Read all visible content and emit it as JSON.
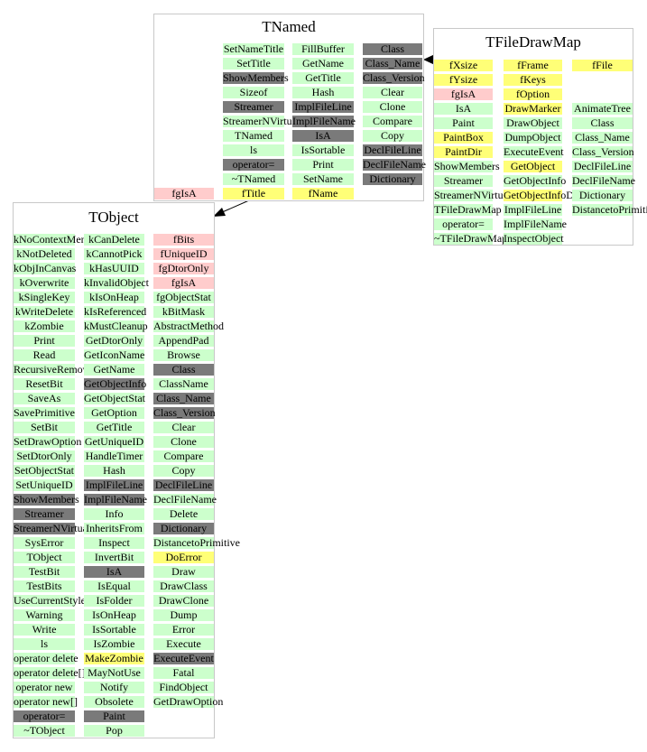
{
  "colors": {
    "public": "#ccffcc",
    "inherited": "#7a7a7a",
    "data": "#ffff77",
    "private": "#ffcccc",
    "border": "#c8c8c8",
    "edge": "#000000"
  },
  "tnamed": {
    "title": "TNamed",
    "columns": [
      [
        {
          "t": "SetNameTitle",
          "c": "public"
        },
        {
          "t": "SetTitle",
          "c": "public"
        },
        {
          "t": "ShowMembers",
          "c": "inherited"
        },
        {
          "t": "Sizeof",
          "c": "public"
        },
        {
          "t": "Streamer",
          "c": "inherited"
        },
        {
          "t": "StreamerNVirtual",
          "c": "public"
        },
        {
          "t": "TNamed",
          "c": "public"
        },
        {
          "t": "ls",
          "c": "public"
        },
        {
          "t": "operator=",
          "c": "inherited"
        },
        {
          "t": "~TNamed",
          "c": "public"
        },
        {
          "t": "fTitle",
          "c": "data"
        }
      ],
      [
        {
          "t": "FillBuffer",
          "c": "public"
        },
        {
          "t": "GetName",
          "c": "public"
        },
        {
          "t": "GetTitle",
          "c": "public"
        },
        {
          "t": "Hash",
          "c": "public"
        },
        {
          "t": "ImplFileLine",
          "c": "inherited"
        },
        {
          "t": "ImplFileName",
          "c": "inherited"
        },
        {
          "t": "IsA",
          "c": "inherited"
        },
        {
          "t": "IsSortable",
          "c": "public"
        },
        {
          "t": "Print",
          "c": "public"
        },
        {
          "t": "SetName",
          "c": "public"
        },
        {
          "t": "fName",
          "c": "data"
        }
      ],
      [
        {
          "t": "Class",
          "c": "inherited"
        },
        {
          "t": "Class_Name",
          "c": "inherited"
        },
        {
          "t": "Class_Version",
          "c": "inherited"
        },
        {
          "t": "Clear",
          "c": "public"
        },
        {
          "t": "Clone",
          "c": "public"
        },
        {
          "t": "Compare",
          "c": "public"
        },
        {
          "t": "Copy",
          "c": "public"
        },
        {
          "t": "DeclFileLine",
          "c": "inherited"
        },
        {
          "t": "DeclFileName",
          "c": "inherited"
        },
        {
          "t": "Dictionary",
          "c": "inherited"
        }
      ]
    ],
    "fgisa": {
      "t": "fgIsA",
      "c": "private"
    }
  },
  "tfiledrawmap": {
    "title": "TFileDrawMap",
    "columns": [
      [
        {
          "t": "fXsize",
          "c": "data"
        },
        {
          "t": "fYsize",
          "c": "data"
        },
        {
          "t": "fgIsA",
          "c": "private"
        },
        {
          "t": "IsA",
          "c": "public"
        },
        {
          "t": "Paint",
          "c": "public"
        },
        {
          "t": "PaintBox",
          "c": "data"
        },
        {
          "t": "PaintDir",
          "c": "data"
        },
        {
          "t": "ShowMembers",
          "c": "public"
        },
        {
          "t": "Streamer",
          "c": "public"
        },
        {
          "t": "StreamerNVirtual",
          "c": "public"
        },
        {
          "t": "TFileDrawMap",
          "c": "public"
        },
        {
          "t": "operator=",
          "c": "public"
        },
        {
          "t": "~TFileDrawMap",
          "c": "public"
        }
      ],
      [
        {
          "t": "fFrame",
          "c": "data"
        },
        {
          "t": "fKeys",
          "c": "data"
        },
        {
          "t": "fOption",
          "c": "data"
        },
        {
          "t": "DrawMarker",
          "c": "data"
        },
        {
          "t": "DrawObject",
          "c": "public"
        },
        {
          "t": "DumpObject",
          "c": "public"
        },
        {
          "t": "ExecuteEvent",
          "c": "public"
        },
        {
          "t": "GetObject",
          "c": "data"
        },
        {
          "t": "GetObjectInfo",
          "c": "public"
        },
        {
          "t": "GetObjectInfoDir",
          "c": "data"
        },
        {
          "t": "ImplFileLine",
          "c": "public"
        },
        {
          "t": "ImplFileName",
          "c": "public"
        },
        {
          "t": "InspectObject",
          "c": "public"
        }
      ],
      [
        {
          "t": "fFile",
          "c": "data"
        },
        {
          "t": "",
          "c": "none"
        },
        {
          "t": "",
          "c": "none"
        },
        {
          "t": "AnimateTree",
          "c": "public"
        },
        {
          "t": "Class",
          "c": "public"
        },
        {
          "t": "Class_Name",
          "c": "public"
        },
        {
          "t": "Class_Version",
          "c": "public"
        },
        {
          "t": "DeclFileLine",
          "c": "public"
        },
        {
          "t": "DeclFileName",
          "c": "public"
        },
        {
          "t": "Dictionary",
          "c": "public"
        },
        {
          "t": "DistancetoPrimitive",
          "c": "public"
        }
      ]
    ]
  },
  "tobject": {
    "title": "TObject",
    "columns": [
      [
        {
          "t": "kNoContextMenu",
          "c": "public"
        },
        {
          "t": "kNotDeleted",
          "c": "public"
        },
        {
          "t": "kObjInCanvas",
          "c": "public"
        },
        {
          "t": "kOverwrite",
          "c": "public"
        },
        {
          "t": "kSingleKey",
          "c": "public"
        },
        {
          "t": "kWriteDelete",
          "c": "public"
        },
        {
          "t": "kZombie",
          "c": "public"
        },
        {
          "t": "Print",
          "c": "public"
        },
        {
          "t": "Read",
          "c": "public"
        },
        {
          "t": "RecursiveRemove",
          "c": "public"
        },
        {
          "t": "ResetBit",
          "c": "public"
        },
        {
          "t": "SaveAs",
          "c": "public"
        },
        {
          "t": "SavePrimitive",
          "c": "public"
        },
        {
          "t": "SetBit",
          "c": "public"
        },
        {
          "t": "SetDrawOption",
          "c": "public"
        },
        {
          "t": "SetDtorOnly",
          "c": "public"
        },
        {
          "t": "SetObjectStat",
          "c": "public"
        },
        {
          "t": "SetUniqueID",
          "c": "public"
        },
        {
          "t": "ShowMembers",
          "c": "inherited"
        },
        {
          "t": "Streamer",
          "c": "inherited"
        },
        {
          "t": "StreamerNVirtual",
          "c": "inherited"
        },
        {
          "t": "SysError",
          "c": "public"
        },
        {
          "t": "TObject",
          "c": "public"
        },
        {
          "t": "TestBit",
          "c": "public"
        },
        {
          "t": "TestBits",
          "c": "public"
        },
        {
          "t": "UseCurrentStyle",
          "c": "public"
        },
        {
          "t": "Warning",
          "c": "public"
        },
        {
          "t": "Write",
          "c": "public"
        },
        {
          "t": "ls",
          "c": "public"
        },
        {
          "t": "operator delete",
          "c": "public"
        },
        {
          "t": "operator delete[]",
          "c": "public"
        },
        {
          "t": "operator new",
          "c": "public"
        },
        {
          "t": "operator new[]",
          "c": "public"
        },
        {
          "t": "operator=",
          "c": "inherited"
        },
        {
          "t": "~TObject",
          "c": "public"
        }
      ],
      [
        {
          "t": "kCanDelete",
          "c": "public"
        },
        {
          "t": "kCannotPick",
          "c": "public"
        },
        {
          "t": "kHasUUID",
          "c": "public"
        },
        {
          "t": "kInvalidObject",
          "c": "public"
        },
        {
          "t": "kIsOnHeap",
          "c": "public"
        },
        {
          "t": "kIsReferenced",
          "c": "public"
        },
        {
          "t": "kMustCleanup",
          "c": "public"
        },
        {
          "t": "GetDtorOnly",
          "c": "public"
        },
        {
          "t": "GetIconName",
          "c": "public"
        },
        {
          "t": "GetName",
          "c": "public"
        },
        {
          "t": "GetObjectInfo",
          "c": "inherited"
        },
        {
          "t": "GetObjectStat",
          "c": "public"
        },
        {
          "t": "GetOption",
          "c": "public"
        },
        {
          "t": "GetTitle",
          "c": "public"
        },
        {
          "t": "GetUniqueID",
          "c": "public"
        },
        {
          "t": "HandleTimer",
          "c": "public"
        },
        {
          "t": "Hash",
          "c": "public"
        },
        {
          "t": "ImplFileLine",
          "c": "inherited"
        },
        {
          "t": "ImplFileName",
          "c": "inherited"
        },
        {
          "t": "Info",
          "c": "public"
        },
        {
          "t": "InheritsFrom",
          "c": "public"
        },
        {
          "t": "Inspect",
          "c": "public"
        },
        {
          "t": "InvertBit",
          "c": "public"
        },
        {
          "t": "IsA",
          "c": "inherited"
        },
        {
          "t": "IsEqual",
          "c": "public"
        },
        {
          "t": "IsFolder",
          "c": "public"
        },
        {
          "t": "IsOnHeap",
          "c": "public"
        },
        {
          "t": "IsSortable",
          "c": "public"
        },
        {
          "t": "IsZombie",
          "c": "public"
        },
        {
          "t": "MakeZombie",
          "c": "data"
        },
        {
          "t": "MayNotUse",
          "c": "public"
        },
        {
          "t": "Notify",
          "c": "public"
        },
        {
          "t": "Obsolete",
          "c": "public"
        },
        {
          "t": "Paint",
          "c": "inherited"
        },
        {
          "t": "Pop",
          "c": "public"
        }
      ],
      [
        {
          "t": "fBits",
          "c": "private"
        },
        {
          "t": "fUniqueID",
          "c": "private"
        },
        {
          "t": "fgDtorOnly",
          "c": "private"
        },
        {
          "t": "fgIsA",
          "c": "private"
        },
        {
          "t": "fgObjectStat",
          "c": "public"
        },
        {
          "t": "kBitMask",
          "c": "public"
        },
        {
          "t": "AbstractMethod",
          "c": "public"
        },
        {
          "t": "AppendPad",
          "c": "public"
        },
        {
          "t": "Browse",
          "c": "public"
        },
        {
          "t": "Class",
          "c": "inherited"
        },
        {
          "t": "ClassName",
          "c": "public"
        },
        {
          "t": "Class_Name",
          "c": "inherited"
        },
        {
          "t": "Class_Version",
          "c": "inherited"
        },
        {
          "t": "Clear",
          "c": "public"
        },
        {
          "t": "Clone",
          "c": "public"
        },
        {
          "t": "Compare",
          "c": "public"
        },
        {
          "t": "Copy",
          "c": "public"
        },
        {
          "t": "DeclFileLine",
          "c": "inherited"
        },
        {
          "t": "DeclFileName",
          "c": "public"
        },
        {
          "t": "Delete",
          "c": "public"
        },
        {
          "t": "Dictionary",
          "c": "inherited"
        },
        {
          "t": "DistancetoPrimitive",
          "c": "public"
        },
        {
          "t": "DoError",
          "c": "data"
        },
        {
          "t": "Draw",
          "c": "public"
        },
        {
          "t": "DrawClass",
          "c": "public"
        },
        {
          "t": "DrawClone",
          "c": "public"
        },
        {
          "t": "Dump",
          "c": "public"
        },
        {
          "t": "Error",
          "c": "public"
        },
        {
          "t": "Execute",
          "c": "public"
        },
        {
          "t": "ExecuteEvent",
          "c": "inherited"
        },
        {
          "t": "Fatal",
          "c": "public"
        },
        {
          "t": "FindObject",
          "c": "public"
        },
        {
          "t": "GetDrawOption",
          "c": "public"
        }
      ]
    ]
  }
}
